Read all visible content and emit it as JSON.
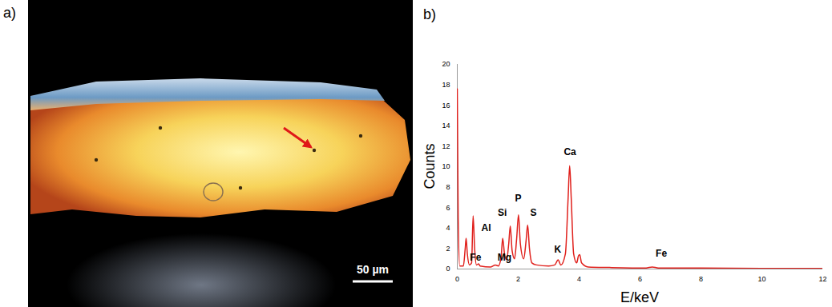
{
  "panel_a": {
    "label": "a)",
    "scale_bar": "50 µm"
  },
  "chart_data": {
    "panel_label": "b)",
    "type": "line",
    "x_label": "E/keV",
    "y_label": "Counts",
    "color": "#e0201c",
    "x": [
      0,
      0.03,
      0.08,
      0.2,
      0.26,
      0.29,
      0.33,
      0.4,
      0.47,
      0.52,
      0.57,
      0.63,
      0.7,
      0.75,
      1.1,
      1.25,
      1.35,
      1.44,
      1.49,
      1.55,
      1.62,
      1.69,
      1.74,
      1.8,
      1.88,
      1.95,
      2.01,
      2.07,
      2.18,
      2.26,
      2.31,
      2.37,
      2.45,
      2.6,
      3.0,
      3.2,
      3.31,
      3.4,
      3.55,
      3.64,
      3.69,
      3.74,
      3.82,
      3.92,
      3.98,
      4.02,
      4.08,
      4.3,
      5,
      6.2,
      6.4,
      6.6,
      8,
      10,
      12
    ],
    "values": [
      17.6,
      5,
      0.3,
      0.3,
      2.0,
      3.0,
      1.5,
      0.4,
      0.6,
      5.2,
      2.0,
      0.4,
      0.5,
      0.3,
      0.2,
      0.4,
      0.3,
      1.2,
      3.0,
      1.5,
      0.9,
      2.5,
      4.2,
      1.8,
      1.0,
      3.0,
      5.3,
      2.5,
      1.0,
      2.8,
      4.3,
      2.0,
      0.6,
      0.4,
      0.3,
      0.4,
      0.9,
      0.4,
      1.5,
      7,
      10.1,
      7,
      1.5,
      0.6,
      1.3,
      1.4,
      0.6,
      0.2,
      0.15,
      0.1,
      0.2,
      0.1,
      0.1,
      0.05,
      0.05
    ],
    "annotations": [
      {
        "text": "Fe",
        "x": 0.6,
        "y": 1.1
      },
      {
        "text": "Mg",
        "x": 1.55,
        "y": 1.1
      },
      {
        "text": "Al",
        "x": 0.95,
        "y": 4.0
      },
      {
        "text": "Si",
        "x": 1.48,
        "y": 5.5
      },
      {
        "text": "P",
        "x": 2.0,
        "y": 6.9
      },
      {
        "text": "S",
        "x": 2.5,
        "y": 5.5
      },
      {
        "text": "K",
        "x": 3.3,
        "y": 1.9
      },
      {
        "text": "Ca",
        "x": 3.7,
        "y": 11.4
      },
      {
        "text": "Fe",
        "x": 6.7,
        "y": 1.5
      }
    ],
    "xlim": [
      0,
      12
    ],
    "xticks": [
      0,
      2,
      4,
      6,
      8,
      10,
      12
    ],
    "ylim": [
      0,
      20
    ],
    "yticks": [
      0,
      2,
      4,
      6,
      8,
      10,
      12,
      14,
      16,
      18,
      20
    ],
    "grid": false
  }
}
